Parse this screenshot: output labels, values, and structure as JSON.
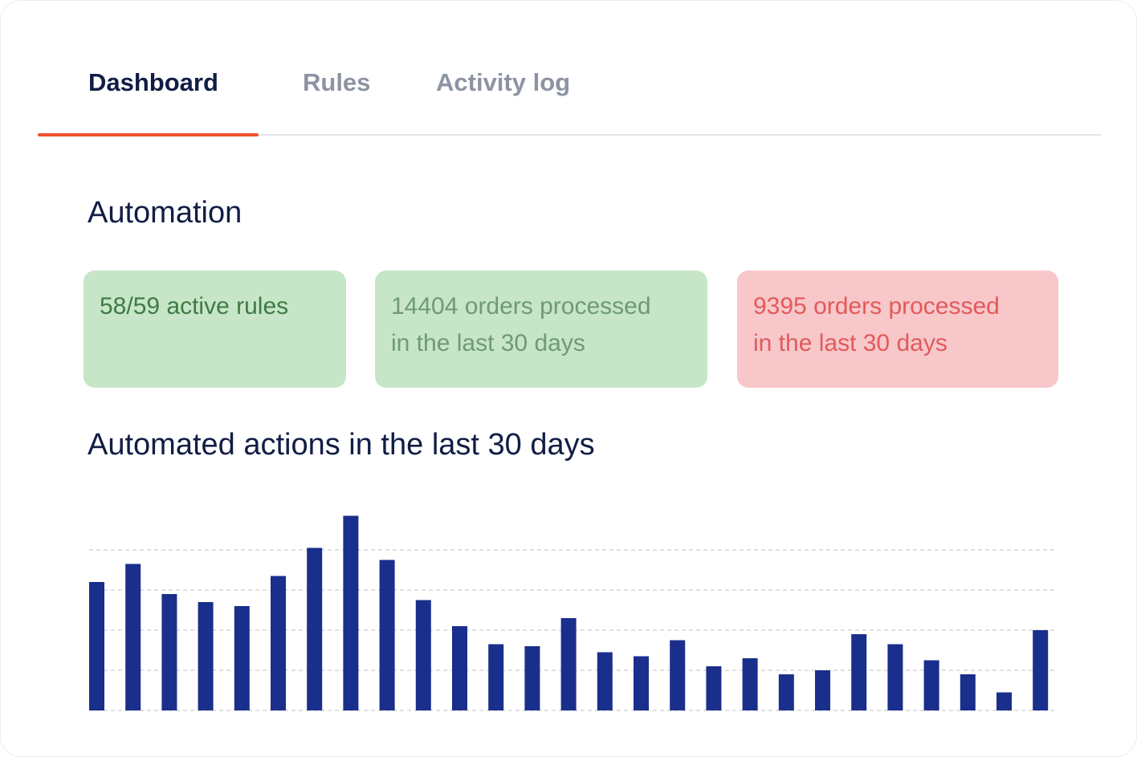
{
  "tabs": [
    {
      "label": "Dashboard",
      "active": true
    },
    {
      "label": "Rules",
      "active": false
    },
    {
      "label": "Activity log",
      "active": false
    }
  ],
  "colors": {
    "accent": "#f0532d",
    "title": "#111d45",
    "bar": "#1a2e8c",
    "stat_green_bg": "#c6e6c7",
    "stat_green_text_strong": "#3f7a45",
    "stat_green_text_muted": "#6f9a74",
    "stat_red_bg": "#f7c7ca",
    "stat_red_text": "#e25a5a",
    "gridline": "#d6d6d6"
  },
  "automation": {
    "title": "Automation",
    "stats": {
      "active_rules": "58/59 active rules",
      "orders_processed_line1": "14404 orders processed",
      "orders_processed_line2": "in the last 30 days",
      "orders_failed_line1": "9395 orders processed",
      "orders_failed_line2": "in the last 30 days"
    }
  },
  "chart_section": {
    "title": "Automated actions in the last 30 days"
  },
  "chart_data": {
    "type": "bar",
    "title": "Automated actions in the last 30 days",
    "xlabel": "",
    "ylabel": "",
    "grid": true,
    "values": [
      32,
      36.5,
      29,
      27,
      26,
      33.5,
      40.5,
      48.5,
      37.5,
      27.5,
      21,
      16.5,
      16,
      23,
      14.5,
      13.5,
      17.5,
      11,
      13,
      9,
      10,
      19,
      16.5,
      12.5,
      9,
      4.5,
      20,
      0,
      0,
      0
    ],
    "ylim": [
      0,
      50
    ]
  }
}
